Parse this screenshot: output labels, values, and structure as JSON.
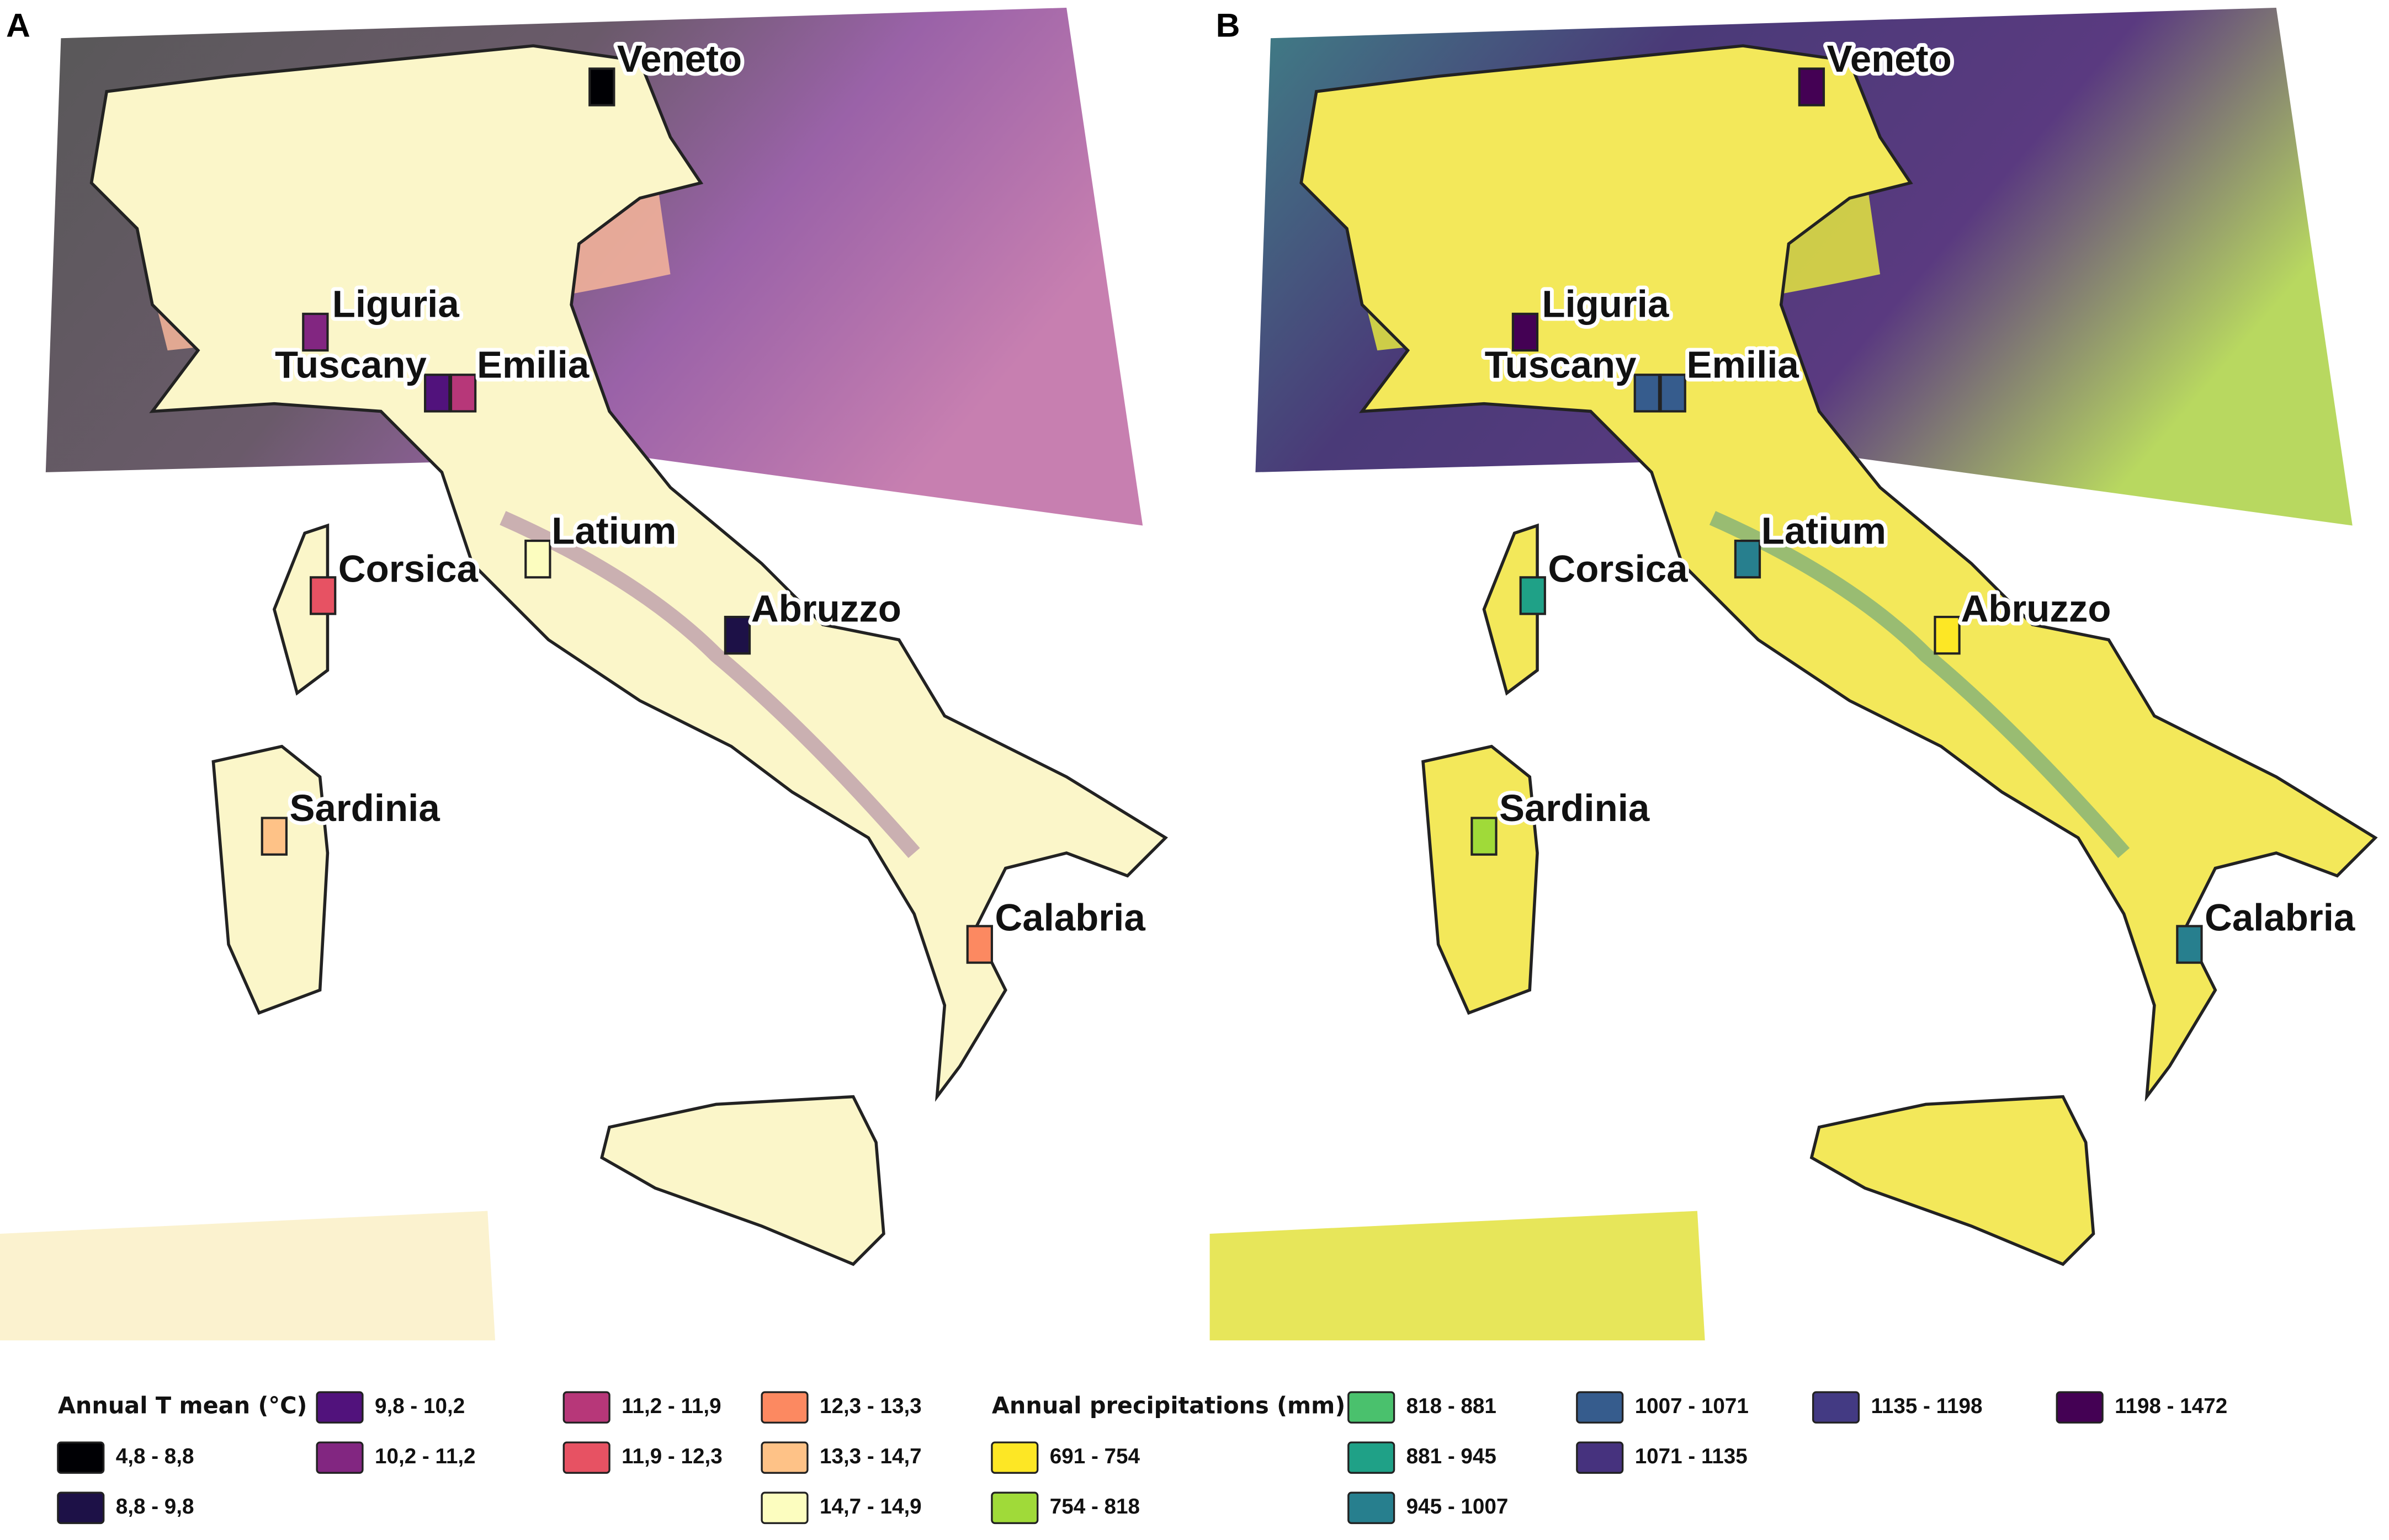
{
  "panels": [
    {
      "letter": "A",
      "regions": [
        {
          "name": "Veneto",
          "color": "#000004"
        },
        {
          "name": "Liguria",
          "color": "#822681"
        },
        {
          "name": "Tuscany",
          "color": "#51127c"
        },
        {
          "name": "Emilia",
          "color": "#b73779"
        },
        {
          "name": "Latium",
          "color": "#fcfdbf"
        },
        {
          "name": "Corsica",
          "color": "#e75263"
        },
        {
          "name": "Abruzzo",
          "color": "#1d1147"
        },
        {
          "name": "Sardinia",
          "color": "#fec287"
        },
        {
          "name": "Calabria",
          "color": "#fc8961"
        }
      ],
      "legend": {
        "title": "Annual T mean (°C)",
        "items": [
          {
            "label": "4,8 - 8,8",
            "color": "#000004"
          },
          {
            "label": "8,8 - 9,8",
            "color": "#1d1147"
          },
          {
            "label": "9,8 - 10,2",
            "color": "#51127c"
          },
          {
            "label": "10,2 - 11,2",
            "color": "#822681"
          },
          {
            "label": "11,2 - 11,9",
            "color": "#b73779"
          },
          {
            "label": "11,9 - 12,3",
            "color": "#e75263"
          },
          {
            "label": "12,3 - 13,3",
            "color": "#fc8961"
          },
          {
            "label": "13,3 - 14,7",
            "color": "#fec287"
          },
          {
            "label": "14,7 - 14,9",
            "color": "#fcfdbf"
          }
        ]
      }
    },
    {
      "letter": "B",
      "regions": [
        {
          "name": "Veneto",
          "color": "#440154"
        },
        {
          "name": "Liguria",
          "color": "#440154"
        },
        {
          "name": "Tuscany",
          "color": "#365c8d"
        },
        {
          "name": "Emilia",
          "color": "#365c8d"
        },
        {
          "name": "Latium",
          "color": "#277f8e"
        },
        {
          "name": "Corsica",
          "color": "#1fa187"
        },
        {
          "name": "Abruzzo",
          "color": "#fde725"
        },
        {
          "name": "Sardinia",
          "color": "#a0da39"
        },
        {
          "name": "Calabria",
          "color": "#277f8e"
        }
      ],
      "legend": {
        "title": "Annual precipitations (mm)",
        "items": [
          {
            "label": "691 - 754",
            "color": "#fde725"
          },
          {
            "label": "754 - 818",
            "color": "#a0da39"
          },
          {
            "label": "818 - 881",
            "color": "#4ac16d"
          },
          {
            "label": "881 - 945",
            "color": "#1fa187"
          },
          {
            "label": "945 - 1007",
            "color": "#277f8e"
          },
          {
            "label": "1007 - 1071",
            "color": "#365c8d"
          },
          {
            "label": "1071 - 1135",
            "color": "#46327e"
          },
          {
            "label": "1135 - 1198",
            "color": "#433a83"
          },
          {
            "label": "1198 - 1472",
            "color": "#440154"
          }
        ]
      }
    }
  ]
}
